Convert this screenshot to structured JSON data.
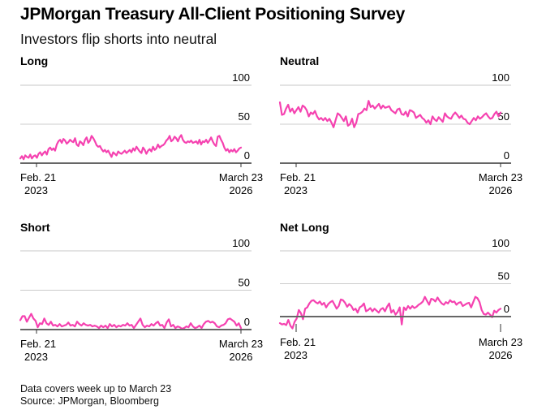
{
  "title": "JPMorgan Treasury All-Client Positioning Survey",
  "subtitle": "Investors flip shorts into neutral",
  "notes": [
    "Data covers week up to March 23",
    "Source: JPMorgan, Bloomberg"
  ],
  "line_color": "#f542b0",
  "chart_data": [
    {
      "type": "line",
      "title": "Long",
      "xlabel": "",
      "ylabel": "",
      "ylim": [
        0,
        100
      ],
      "yticks": [
        0,
        50,
        100
      ],
      "xticks": [
        {
          "label": [
            "Feb. 21",
            "2023"
          ],
          "pos": 0.07
        },
        {
          "label": [
            "March 23",
            "2026"
          ],
          "pos": 1.0
        }
      ],
      "x_range": [
        "2023-01",
        "2026-03-23"
      ],
      "grid": true,
      "values": [
        6,
        9,
        5,
        10,
        8,
        7,
        11,
        6,
        9,
        10,
        7,
        12,
        14,
        10,
        13,
        15,
        11,
        18,
        20,
        17,
        19,
        16,
        24,
        28,
        30,
        26,
        31,
        29,
        25,
        27,
        30,
        28,
        27,
        32,
        24,
        22,
        28,
        26,
        23,
        30,
        33,
        26,
        29,
        35,
        32,
        28,
        23,
        21,
        22,
        18,
        15,
        17,
        14,
        16,
        12,
        8,
        14,
        12,
        10,
        15,
        13,
        12,
        14,
        16,
        13,
        15,
        17,
        14,
        19,
        16,
        21,
        18,
        15,
        13,
        20,
        17,
        12,
        16,
        18,
        15,
        21,
        17,
        19,
        24,
        20,
        22,
        23,
        25,
        29,
        31,
        35,
        28,
        30,
        34,
        32,
        28,
        33,
        36,
        30,
        27,
        26,
        28,
        27,
        29,
        26,
        27,
        28,
        25,
        30,
        24,
        28,
        27,
        30,
        26,
        29,
        33,
        28,
        24,
        22,
        34,
        35,
        30,
        26,
        20,
        16,
        18,
        14,
        17,
        15,
        18,
        14,
        16,
        19,
        20
      ]
    },
    {
      "type": "line",
      "title": "Neutral",
      "xlabel": "",
      "ylabel": "",
      "ylim": [
        0,
        100
      ],
      "yticks": [
        0,
        50,
        100
      ],
      "xticks": [
        {
          "label": [
            "Feb. 21",
            "2023"
          ],
          "pos": 0.07
        },
        {
          "label": [
            "March 23",
            "2026"
          ],
          "pos": 1.0
        }
      ],
      "x_range": [
        "2023-01",
        "2026-03-23"
      ],
      "grid": true,
      "values": [
        78,
        62,
        63,
        70,
        75,
        66,
        70,
        64,
        68,
        72,
        66,
        74,
        72,
        68,
        60,
        65,
        63,
        67,
        60,
        56,
        58,
        55,
        58,
        54,
        57,
        52,
        46,
        55,
        64,
        62,
        58,
        54,
        60,
        48,
        50,
        57,
        46,
        52,
        63,
        64,
        66,
        70,
        68,
        80,
        72,
        74,
        70,
        73,
        76,
        70,
        74,
        71,
        72,
        73,
        68,
        66,
        64,
        69,
        70,
        63,
        62,
        66,
        60,
        68,
        67,
        65,
        58,
        60,
        62,
        58,
        56,
        52,
        55,
        50,
        60,
        56,
        54,
        59,
        56,
        53,
        64,
        60,
        58,
        57,
        62,
        65,
        62,
        58,
        61,
        57,
        56,
        52,
        50,
        54,
        58,
        55,
        60,
        57,
        59,
        62,
        64,
        60,
        57,
        58,
        63,
        66,
        60,
        65
      ]
    },
    {
      "type": "line",
      "title": "Short",
      "xlabel": "",
      "ylabel": "",
      "ylim": [
        0,
        100
      ],
      "yticks": [
        0,
        50,
        100
      ],
      "xticks": [
        {
          "label": [
            "Feb. 21",
            "2023"
          ],
          "pos": 0.07
        },
        {
          "label": [
            "March 23",
            "2026"
          ],
          "pos": 1.0
        }
      ],
      "x_range": [
        "2023-01",
        "2026-03-23"
      ],
      "grid": true,
      "values": [
        12,
        17,
        17,
        10,
        15,
        20,
        14,
        11,
        3,
        8,
        7,
        14,
        8,
        6,
        10,
        5,
        6,
        4,
        7,
        4,
        5,
        6,
        9,
        5,
        6,
        4,
        10,
        7,
        5,
        8,
        6,
        5,
        6,
        4,
        5,
        4,
        2,
        5,
        3,
        5,
        2,
        7,
        4,
        6,
        3,
        5,
        4,
        6,
        5,
        8,
        5,
        6,
        2,
        6,
        10,
        14,
        6,
        3,
        5,
        4,
        7,
        5,
        8,
        10,
        5,
        6,
        2,
        9,
        13,
        4,
        6,
        2,
        4,
        3,
        1,
        2,
        4,
        3,
        8,
        4,
        2,
        3,
        5,
        2,
        7,
        10,
        11,
        9,
        10,
        8,
        4,
        3,
        5,
        6,
        8,
        13,
        14,
        12,
        10,
        5,
        8,
        2
      ]
    },
    {
      "type": "line",
      "title": "Net Long",
      "xlabel": "",
      "ylabel": "",
      "ylim": [
        -25,
        100
      ],
      "yticks": [
        0,
        50,
        100
      ],
      "xticks": [
        {
          "label": [
            "Feb. 21",
            "2023"
          ],
          "pos": 0.07
        },
        {
          "label": [
            "March 23",
            "2026"
          ],
          "pos": 1.0
        }
      ],
      "x_range": [
        "2023-01",
        "2026-03-23"
      ],
      "grid": true,
      "values": [
        -10,
        -12,
        -11,
        -13,
        -5,
        -14,
        -18,
        -8,
        -3,
        10,
        5,
        -4,
        12,
        14,
        20,
        24,
        25,
        22,
        20,
        23,
        18,
        21,
        14,
        19,
        22,
        24,
        18,
        12,
        16,
        26,
        25,
        21,
        15,
        19,
        16,
        10,
        12,
        6,
        14,
        16,
        20,
        8,
        10,
        13,
        8,
        12,
        9,
        6,
        11,
        13,
        8,
        15,
        20,
        6,
        10,
        3,
        7,
        14,
        -12,
        14,
        10,
        16,
        12,
        16,
        13,
        15,
        18,
        20,
        23,
        30,
        24,
        18,
        27,
        26,
        23,
        29,
        24,
        20,
        18,
        22,
        20,
        25,
        22,
        23,
        18,
        21,
        22,
        16,
        18,
        20,
        21,
        14,
        22,
        30,
        28,
        22,
        10,
        4,
        3,
        6,
        3,
        -1,
        9,
        6,
        10,
        12
      ]
    }
  ]
}
